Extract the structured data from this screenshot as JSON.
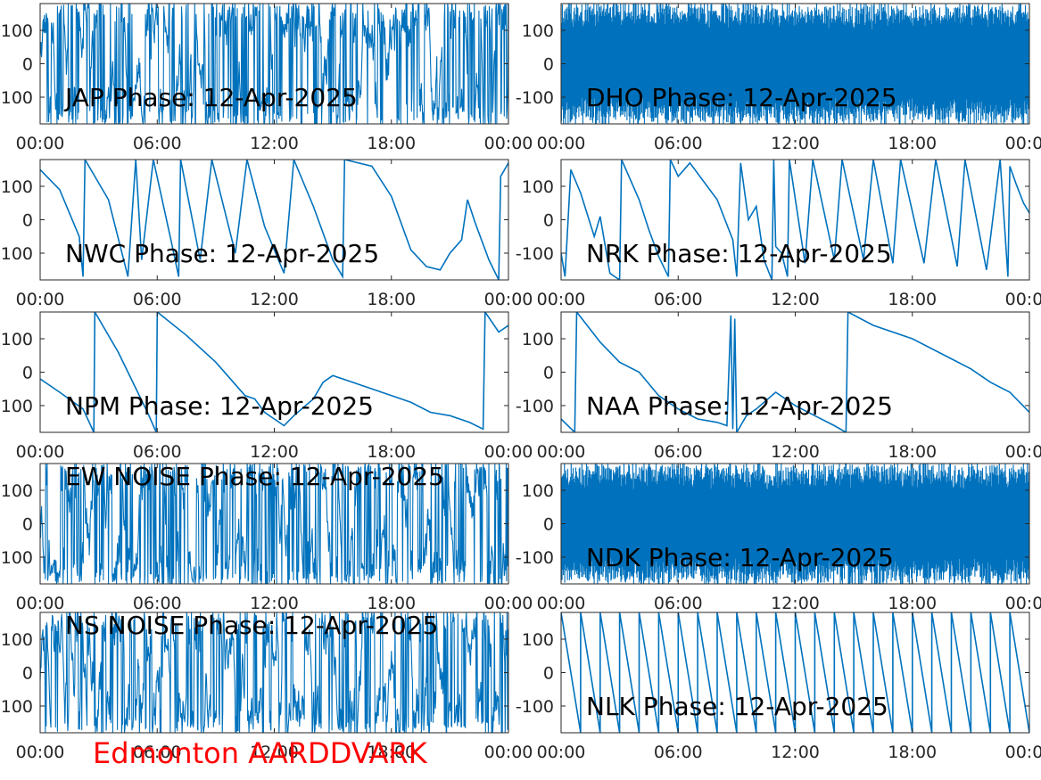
{
  "footer": "Edmonton AARDDVARK",
  "colors": {
    "trace": "#0072BD",
    "axis": "#262626",
    "footer": "#ff0000"
  },
  "chart_data": [
    {
      "type": "line",
      "title": "JAP Phase: 12-Apr-2025",
      "pattern": "noise",
      "x_ticks": [
        "00:00",
        "06:00",
        "12:00",
        "18:00",
        "00:00"
      ],
      "xlim_hours": [
        0,
        24
      ],
      "y_ticks": [
        100,
        0,
        -100
      ],
      "ylim": [
        -180,
        180
      ]
    },
    {
      "type": "line",
      "title": "DHO Phase: 12-Apr-2025",
      "pattern": "dense",
      "x_ticks": [
        "00:00",
        "06:00",
        "12:00",
        "18:00",
        "00:00"
      ],
      "xlim_hours": [
        0,
        24
      ],
      "y_ticks": [
        100,
        0,
        -100
      ],
      "ylim": [
        -180,
        180
      ]
    },
    {
      "type": "line",
      "title": "NWC Phase: 12-Apr-2025",
      "pattern": "points",
      "x_ticks": [
        "00:00",
        "06:00",
        "12:00",
        "18:00",
        "00:00"
      ],
      "xlim_hours": [
        0,
        24
      ],
      "y_ticks": [
        100,
        0,
        -100
      ],
      "ylim": [
        -180,
        180
      ],
      "points": [
        [
          0,
          150
        ],
        [
          1,
          90
        ],
        [
          2,
          -50
        ],
        [
          2.2,
          -170
        ],
        [
          2.3,
          180
        ],
        [
          3.5,
          60
        ],
        [
          4.5,
          -170
        ],
        [
          4.9,
          180
        ],
        [
          5.2,
          -120
        ],
        [
          5.8,
          180
        ],
        [
          6.7,
          -60
        ],
        [
          7.1,
          -170
        ],
        [
          7.2,
          180
        ],
        [
          8.2,
          -120
        ],
        [
          8.8,
          180
        ],
        [
          10,
          -100
        ],
        [
          10.6,
          180
        ],
        [
          11.5,
          -20
        ],
        [
          12.5,
          -160
        ],
        [
          13,
          180
        ],
        [
          14,
          40
        ],
        [
          15,
          -120
        ],
        [
          15.5,
          -170
        ],
        [
          15.6,
          180
        ],
        [
          17,
          160
        ],
        [
          18,
          70
        ],
        [
          19,
          -90
        ],
        [
          19.8,
          -140
        ],
        [
          20.5,
          -150
        ],
        [
          21,
          -100
        ],
        [
          21.6,
          -60
        ],
        [
          21.9,
          60
        ],
        [
          22.3,
          -10
        ],
        [
          23,
          -120
        ],
        [
          23.5,
          -180
        ],
        [
          23.6,
          130
        ],
        [
          24,
          170
        ]
      ]
    },
    {
      "type": "line",
      "title": "NRK Phase: 12-Apr-2025",
      "pattern": "points",
      "x_ticks": [
        "00:00",
        "06:00",
        "12:00",
        "18:00",
        "00:00"
      ],
      "xlim_hours": [
        0,
        24
      ],
      "y_ticks": [
        100,
        0,
        -100
      ],
      "ylim": [
        -180,
        180
      ],
      "points": [
        [
          0,
          -100
        ],
        [
          0.2,
          -170
        ],
        [
          0.5,
          150
        ],
        [
          1,
          80
        ],
        [
          1.7,
          -50
        ],
        [
          2,
          10
        ],
        [
          2.5,
          -160
        ],
        [
          3,
          -180
        ],
        [
          3.1,
          180
        ],
        [
          4,
          60
        ],
        [
          4.5,
          -30
        ],
        [
          5,
          -110
        ],
        [
          5.5,
          -170
        ],
        [
          5.6,
          180
        ],
        [
          6,
          130
        ],
        [
          6.6,
          170
        ],
        [
          8,
          60
        ],
        [
          8.8,
          -60
        ],
        [
          9,
          -170
        ],
        [
          9.2,
          170
        ],
        [
          9.6,
          0
        ],
        [
          10,
          40
        ],
        [
          10.4,
          -120
        ],
        [
          10.8,
          -180
        ],
        [
          10.9,
          180
        ],
        [
          11,
          -80
        ],
        [
          11.3,
          -100
        ],
        [
          11.6,
          -170
        ],
        [
          11.7,
          180
        ],
        [
          12.5,
          -130
        ],
        [
          12.9,
          180
        ],
        [
          14,
          -120
        ],
        [
          14.4,
          180
        ],
        [
          15.5,
          -120
        ],
        [
          16,
          180
        ],
        [
          17,
          -130
        ],
        [
          17.4,
          180
        ],
        [
          18.6,
          -130
        ],
        [
          19.2,
          180
        ],
        [
          20.3,
          -140
        ],
        [
          20.7,
          180
        ],
        [
          21.8,
          -150
        ],
        [
          22.5,
          180
        ],
        [
          22.9,
          -170
        ],
        [
          23,
          160
        ],
        [
          23.3,
          110
        ],
        [
          23.7,
          50
        ],
        [
          24,
          20
        ]
      ]
    },
    {
      "type": "line",
      "title": "NPM Phase: 12-Apr-2025",
      "pattern": "points",
      "x_ticks": [
        "00:00",
        "06:00",
        "12:00",
        "18:00",
        "00:00"
      ],
      "xlim_hours": [
        0,
        24
      ],
      "y_ticks": [
        100,
        0,
        -100
      ],
      "ylim": [
        -180,
        180
      ],
      "points": [
        [
          0,
          -20
        ],
        [
          1,
          -60
        ],
        [
          2.2,
          -110
        ],
        [
          2.75,
          -180
        ],
        [
          2.8,
          180
        ],
        [
          4,
          60
        ],
        [
          5.5,
          -120
        ],
        [
          5.95,
          -180
        ],
        [
          6,
          180
        ],
        [
          7.5,
          110
        ],
        [
          9,
          30
        ],
        [
          10.5,
          -70
        ],
        [
          11,
          -80
        ],
        [
          11.5,
          -120
        ],
        [
          12,
          -140
        ],
        [
          12.5,
          -160
        ],
        [
          13,
          -130
        ],
        [
          14,
          -80
        ],
        [
          14.5,
          -30
        ],
        [
          15,
          -10
        ],
        [
          16,
          -30
        ],
        [
          17,
          -50
        ],
        [
          18,
          -70
        ],
        [
          19,
          -90
        ],
        [
          20,
          -120
        ],
        [
          21,
          -130
        ],
        [
          21.5,
          -140
        ],
        [
          22,
          -150
        ],
        [
          22.7,
          -170
        ],
        [
          22.8,
          180
        ],
        [
          23.5,
          120
        ],
        [
          24,
          140
        ]
      ]
    },
    {
      "type": "line",
      "title": "NAA Phase: 12-Apr-2025",
      "pattern": "points",
      "x_ticks": [
        "00:00",
        "06:00",
        "12:00",
        "18:00",
        "00:00"
      ],
      "xlim_hours": [
        0,
        24
      ],
      "y_ticks": [
        100,
        0,
        -100
      ],
      "ylim": [
        -180,
        180
      ],
      "points": [
        [
          0,
          -140
        ],
        [
          0.7,
          -180
        ],
        [
          0.8,
          180
        ],
        [
          2,
          90
        ],
        [
          3,
          30
        ],
        [
          4,
          0
        ],
        [
          5,
          -70
        ],
        [
          6,
          -110
        ],
        [
          7,
          -140
        ],
        [
          8,
          -150
        ],
        [
          8.5,
          -160
        ],
        [
          8.7,
          170
        ],
        [
          8.8,
          -170
        ],
        [
          8.9,
          160
        ],
        [
          9,
          -180
        ],
        [
          9.5,
          -130
        ],
        [
          10,
          -110
        ],
        [
          11,
          -60
        ],
        [
          12,
          -100
        ],
        [
          13,
          -130
        ],
        [
          14,
          -160
        ],
        [
          14.6,
          -180
        ],
        [
          14.7,
          180
        ],
        [
          16,
          140
        ],
        [
          18,
          100
        ],
        [
          20,
          40
        ],
        [
          21,
          10
        ],
        [
          22,
          -30
        ],
        [
          23,
          -60
        ],
        [
          24,
          -120
        ]
      ]
    },
    {
      "type": "line",
      "title": "EW NOISE Phase: 12-Apr-2025",
      "pattern": "noise",
      "x_ticks": [
        "00:00",
        "06:00",
        "12:00",
        "18:00",
        "00:00"
      ],
      "xlim_hours": [
        0,
        24
      ],
      "y_ticks": [
        100,
        0,
        -100
      ],
      "ylim": [
        -180,
        180
      ]
    },
    {
      "type": "line",
      "title": "NDK Phase: 12-Apr-2025",
      "pattern": "dense",
      "x_ticks": [
        "00:00",
        "06:00",
        "12:00",
        "18:00",
        "00:00"
      ],
      "xlim_hours": [
        0,
        24
      ],
      "y_ticks": [
        100,
        0,
        -100
      ],
      "ylim": [
        -180,
        180
      ]
    },
    {
      "type": "line",
      "title": "NS NOISE Phase: 12-Apr-2025",
      "pattern": "noise",
      "x_ticks": [
        "00:00",
        "06:00",
        "12:00",
        "18:00",
        "00:00"
      ],
      "xlim_hours": [
        0,
        24
      ],
      "y_ticks": [
        100,
        0,
        -100
      ],
      "ylim": [
        -180,
        180
      ]
    },
    {
      "type": "line",
      "title": "NLK Phase: 12-Apr-2025",
      "pattern": "points",
      "x_ticks": [
        "00:00",
        "06:00",
        "12:00",
        "18:00",
        "00:00"
      ],
      "xlim_hours": [
        0,
        24
      ],
      "y_ticks": [
        100,
        0,
        -100
      ],
      "ylim": [
        -180,
        180
      ],
      "points": [
        [
          0,
          180
        ],
        [
          1,
          -180
        ],
        [
          1,
          180
        ],
        [
          2,
          -180
        ],
        [
          2,
          180
        ],
        [
          3,
          -180
        ],
        [
          3,
          180
        ],
        [
          4,
          -180
        ],
        [
          4,
          180
        ],
        [
          5,
          -180
        ],
        [
          5,
          180
        ],
        [
          6,
          -180
        ],
        [
          6,
          180
        ],
        [
          7,
          -180
        ],
        [
          7,
          180
        ],
        [
          8,
          -180
        ],
        [
          8,
          180
        ],
        [
          9,
          -180
        ],
        [
          9,
          180
        ],
        [
          10,
          -180
        ],
        [
          10,
          180
        ],
        [
          11,
          -180
        ],
        [
          11,
          180
        ],
        [
          12,
          -180
        ],
        [
          12,
          180
        ],
        [
          13,
          -180
        ],
        [
          13,
          180
        ],
        [
          14,
          -180
        ],
        [
          14,
          180
        ],
        [
          15,
          -180
        ],
        [
          15,
          180
        ],
        [
          16,
          -180
        ],
        [
          16,
          180
        ],
        [
          17,
          -180
        ],
        [
          17,
          180
        ],
        [
          18,
          -180
        ],
        [
          18,
          180
        ],
        [
          19,
          -180
        ],
        [
          19,
          180
        ],
        [
          20,
          -180
        ],
        [
          20,
          180
        ],
        [
          21,
          -180
        ],
        [
          21,
          180
        ],
        [
          22,
          -180
        ],
        [
          22,
          180
        ],
        [
          23,
          -180
        ],
        [
          23,
          180
        ],
        [
          24,
          -180
        ]
      ]
    }
  ]
}
